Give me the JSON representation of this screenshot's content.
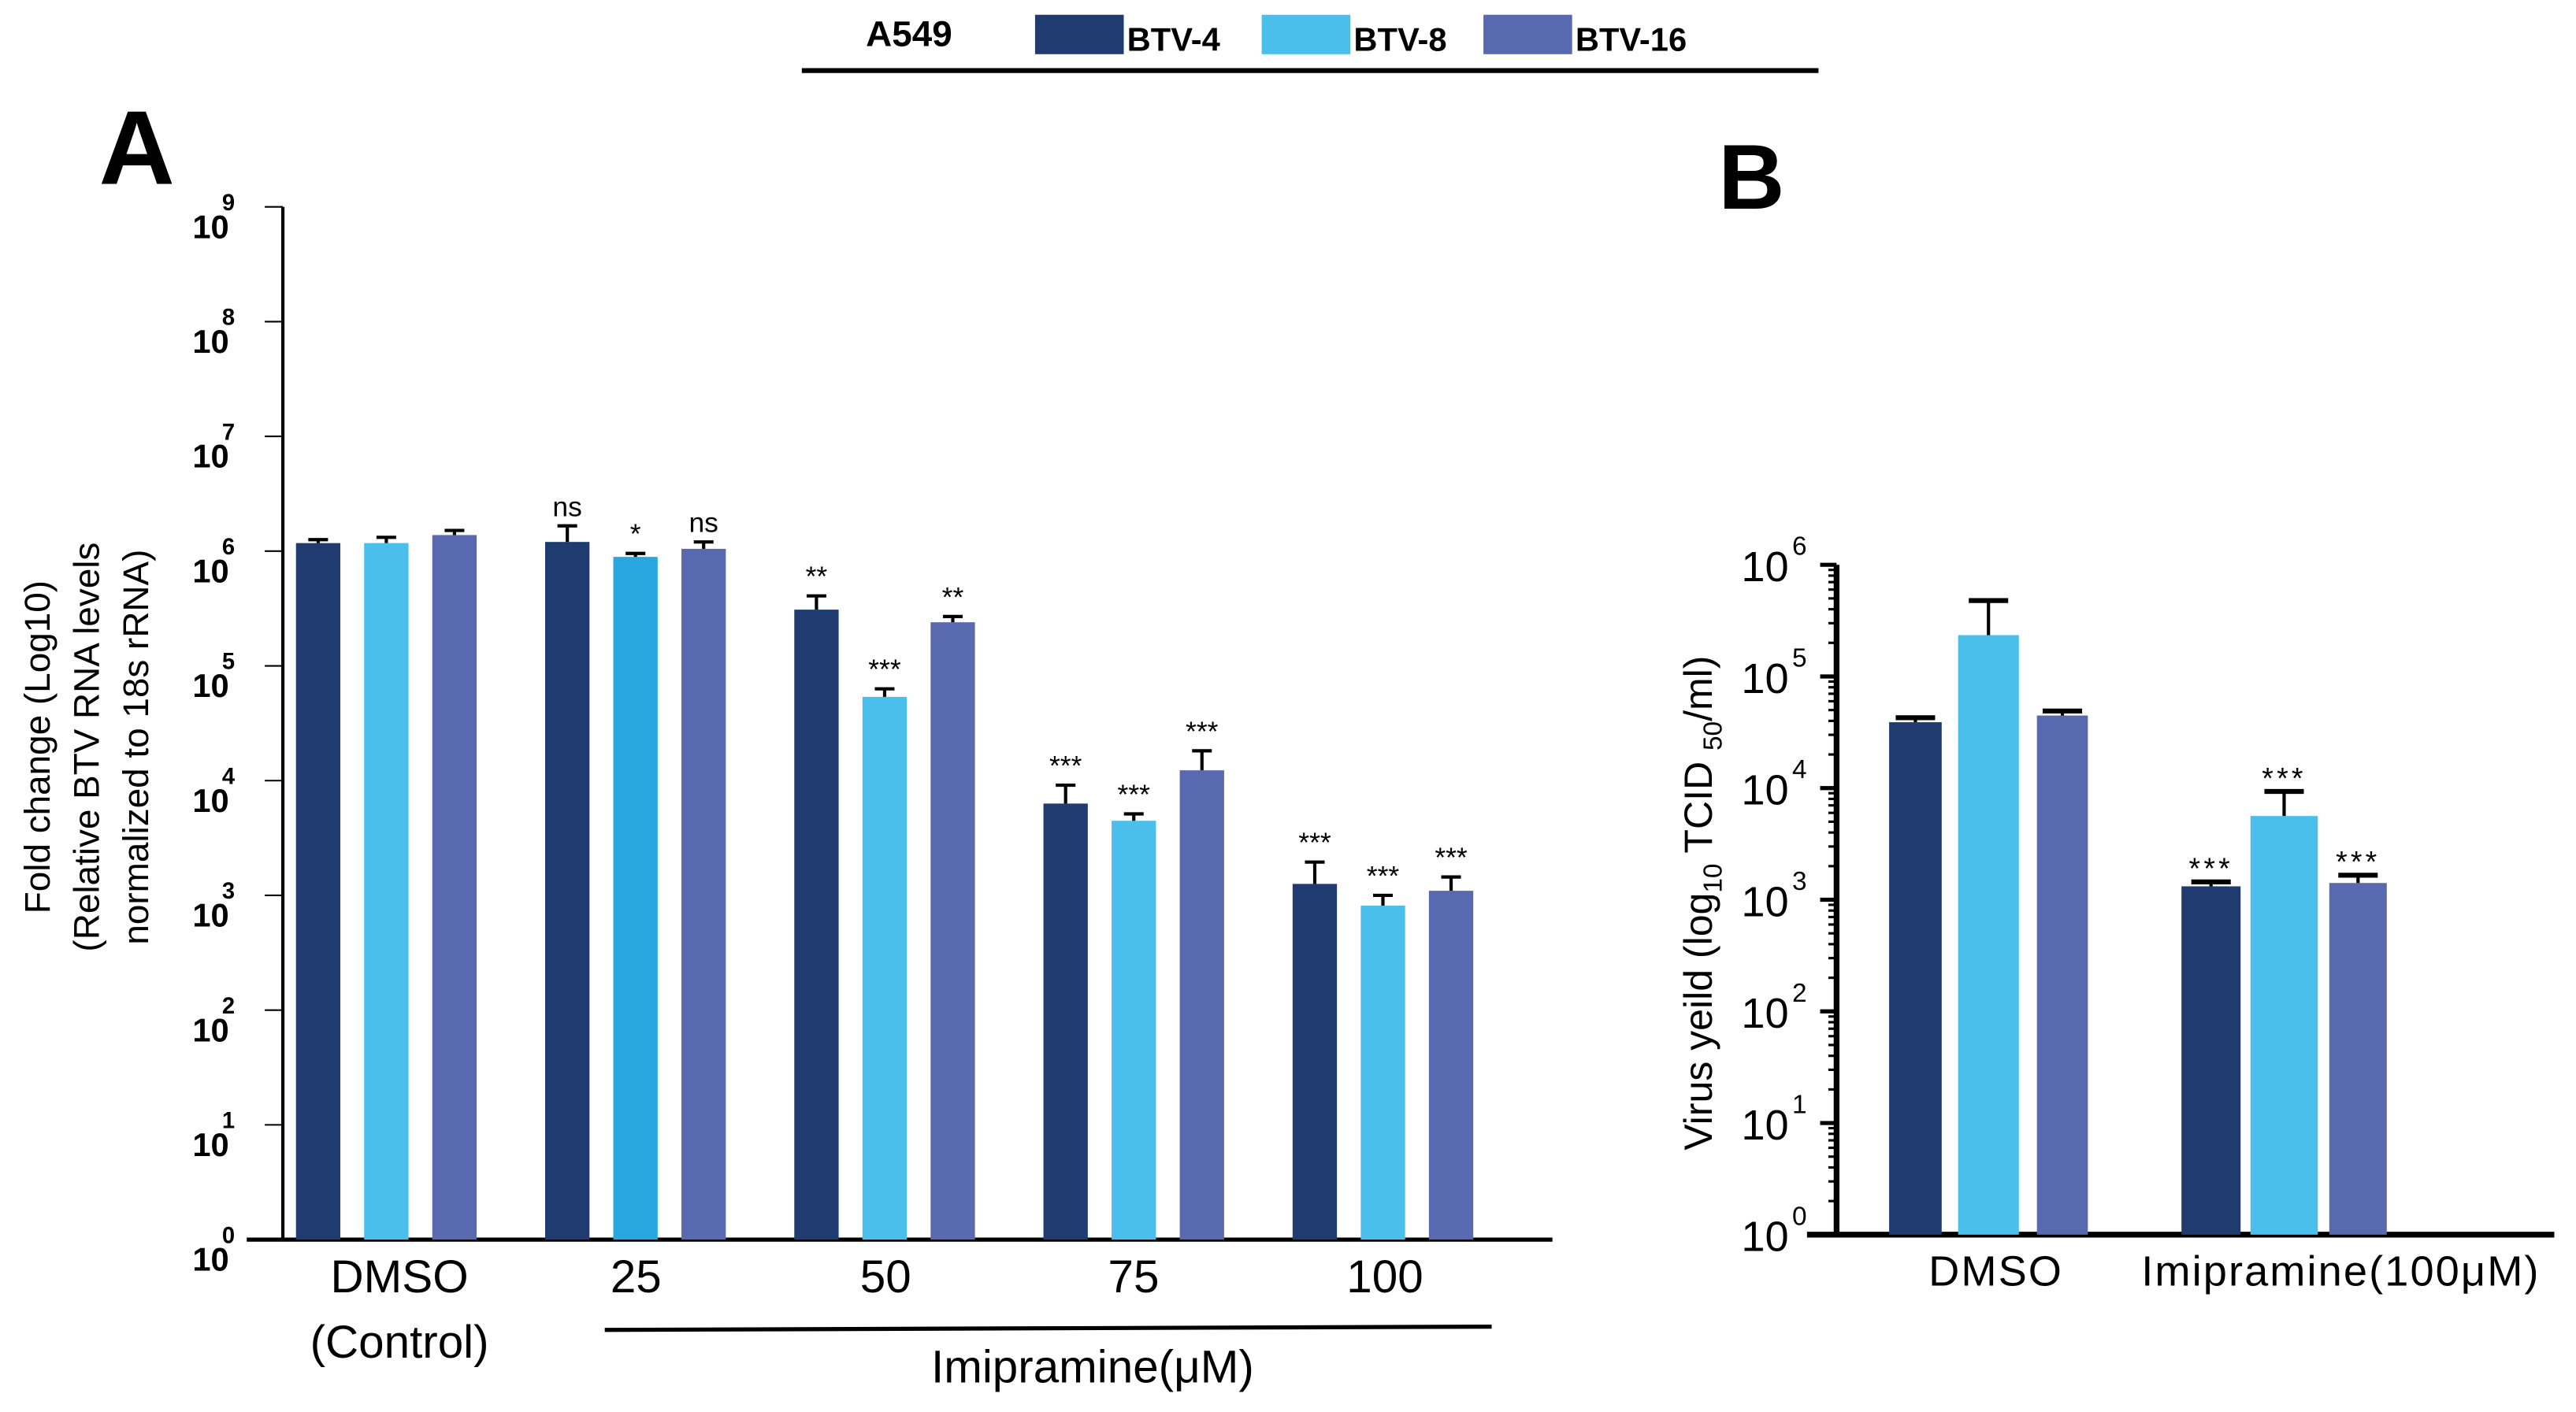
{
  "legend": {
    "cell_line": "A549",
    "series": [
      {
        "name": "BTV-4",
        "color": "#1f3b70"
      },
      {
        "name": "BTV-8",
        "color": "#4abfec"
      },
      {
        "name": "BTV-16",
        "color": "#5869b0"
      }
    ]
  },
  "chart_data": [
    {
      "panel": "A",
      "type": "bar",
      "scale": "log10",
      "ylabel_lines": [
        "Fold change (Log10)",
        "(Relative BTV RNA levels",
        "normalized to 18s rRNA)"
      ],
      "ylim_log10": [
        0,
        9
      ],
      "ytick_base": "10",
      "yticks_exp": [
        "0",
        "1",
        "2",
        "3",
        "4",
        "5",
        "6",
        "7",
        "8",
        "9"
      ],
      "categories": [
        {
          "lines": [
            "DMSO",
            "(Control)"
          ]
        },
        {
          "lines": [
            "25"
          ]
        },
        {
          "lines": [
            "50"
          ]
        },
        {
          "lines": [
            "75"
          ]
        },
        {
          "lines": [
            "100"
          ]
        }
      ],
      "group_label": "Imipramine(μM)",
      "series": [
        {
          "name": "BTV-4",
          "values_log10": [
            6.07,
            6.08,
            5.49,
            3.8,
            3.1
          ],
          "err_top_log10": [
            6.1,
            6.22,
            5.61,
            3.96,
            3.29
          ],
          "stars": [
            "",
            "ns",
            "**",
            "***",
            "***"
          ]
        },
        {
          "name": "BTV-8",
          "values_log10": [
            6.07,
            5.95,
            4.73,
            3.65,
            2.91
          ],
          "err_top_log10": [
            6.12,
            5.98,
            4.8,
            3.71,
            3.0
          ],
          "stars": [
            "",
            "*",
            "***",
            "***",
            "***"
          ],
          "override_colors": {
            "1": "#29a8e0"
          }
        },
        {
          "name": "BTV-16",
          "values_log10": [
            6.14,
            6.02,
            5.38,
            4.09,
            3.04
          ],
          "err_top_log10": [
            6.18,
            6.08,
            5.43,
            4.26,
            3.16
          ],
          "stars": [
            "",
            "ns",
            "**",
            "***",
            "***"
          ]
        }
      ]
    },
    {
      "panel": "B",
      "type": "bar",
      "scale": "log10",
      "ylabel": "Virus yeild (log",
      "ylabel_sub": "10",
      "ylabel_mid": " TCID ",
      "ylabel_sub2": "50",
      "ylabel_end": "/ml)",
      "ylim_log10": [
        0,
        6
      ],
      "ytick_base": "10",
      "yticks_exp": [
        "0",
        "1",
        "2",
        "3",
        "4",
        "5",
        "6"
      ],
      "categories": [
        {
          "lines": [
            "DMSO"
          ]
        },
        {
          "lines": [
            "Imipramine(100μM)"
          ]
        }
      ],
      "series": [
        {
          "name": "BTV-4",
          "values_log10": [
            4.59,
            3.12
          ],
          "err_top_log10": [
            4.63,
            3.16
          ],
          "stars": [
            "",
            "***"
          ]
        },
        {
          "name": "BTV-8",
          "values_log10": [
            5.37,
            3.75
          ],
          "err_top_log10": [
            5.68,
            3.97
          ],
          "stars": [
            "",
            "***"
          ]
        },
        {
          "name": "BTV-16",
          "values_log10": [
            4.65,
            3.15
          ],
          "err_top_log10": [
            4.69,
            3.22
          ],
          "stars": [
            "",
            "***"
          ]
        }
      ]
    }
  ],
  "panel_labels": {
    "a": "A",
    "b": "B"
  }
}
